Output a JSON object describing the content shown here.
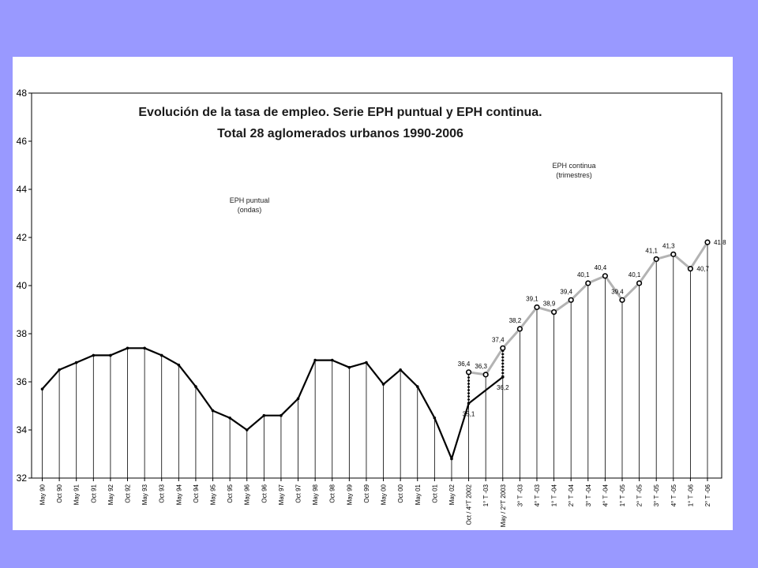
{
  "colors": {
    "background": "#9999ff",
    "panel": "#ffffff",
    "series_puntual": "#000000",
    "series_continua": "#b3b3b3"
  },
  "chart_data": {
    "type": "line",
    "title": "Evolución de la tasa de empleo. Serie EPH puntual y EPH continua.",
    "subtitle": "Total 28 aglomerados urbanos 1990-2006",
    "ylim": [
      32,
      48
    ],
    "yticks": [
      "32",
      "34",
      "36",
      "38",
      "40",
      "42",
      "44",
      "46",
      "48"
    ],
    "grid": false,
    "categories": [
      "May 90",
      "Oct 90",
      "May 91",
      "Oct 91",
      "May 92",
      "Oct 92",
      "May 93",
      "Oct 93",
      "May 94",
      "Oct 94",
      "May 95",
      "Oct 95",
      "May 96",
      "Oct 96",
      "May 97",
      "Oct 97",
      "May 98",
      "Oct 98",
      "May 99",
      "Oct 99",
      "May 00",
      "Oct 00",
      "May 01",
      "Oct 01",
      "May 02",
      "Oct / 4°T 2002",
      "1° T -03",
      "May / 2°T 2003",
      "3° T -03",
      "4° T -03",
      "1° T -04",
      "2° T -04",
      "3° T -04",
      "4° T -04",
      "1° T -05",
      "2° T -05",
      "3° T -05",
      "4° T -05",
      "1° T -06",
      "2° T -06"
    ],
    "series": [
      {
        "name": "EPH puntual",
        "name_lines": [
          "EPH puntual",
          "(ondas)"
        ],
        "values": [
          35.7,
          36.5,
          36.8,
          37.1,
          37.1,
          37.4,
          37.4,
          37.1,
          36.7,
          35.8,
          34.8,
          34.5,
          34.0,
          34.6,
          34.6,
          35.3,
          36.9,
          36.9,
          36.6,
          36.8,
          35.9,
          36.5,
          35.8,
          34.5,
          32.8,
          35.1,
          null,
          36.2,
          null,
          null,
          null,
          null,
          null,
          null,
          null,
          null,
          null,
          null,
          null,
          null
        ],
        "connect_gaps": true
      },
      {
        "name": "EPH continua",
        "name_lines": [
          "EPH continua",
          "(trimestres)"
        ],
        "values": [
          null,
          null,
          null,
          null,
          null,
          null,
          null,
          null,
          null,
          null,
          null,
          null,
          null,
          null,
          null,
          null,
          null,
          null,
          null,
          null,
          null,
          null,
          null,
          null,
          null,
          36.4,
          36.3,
          37.4,
          38.2,
          39.1,
          38.9,
          39.4,
          40.1,
          40.4,
          39.4,
          40.1,
          41.1,
          41.3,
          40.7,
          41.8
        ]
      }
    ],
    "data_labels": [
      {
        "index": 25,
        "text": "36,4",
        "pos": "above"
      },
      {
        "index": 25,
        "text": "35,1",
        "pos": "below"
      },
      {
        "index": 26,
        "text": "36,3",
        "pos": "above"
      },
      {
        "index": 27,
        "text": "37,4",
        "pos": "above"
      },
      {
        "index": 27,
        "text": "36,2",
        "pos": "below"
      },
      {
        "index": 28,
        "text": "38,2",
        "pos": "above"
      },
      {
        "index": 29,
        "text": "39,1",
        "pos": "above"
      },
      {
        "index": 30,
        "text": "38,9",
        "pos": "above"
      },
      {
        "index": 31,
        "text": "39,4",
        "pos": "above"
      },
      {
        "index": 32,
        "text": "40,1",
        "pos": "above"
      },
      {
        "index": 33,
        "text": "40,4",
        "pos": "above"
      },
      {
        "index": 34,
        "text": "39,4",
        "pos": "above"
      },
      {
        "index": 35,
        "text": "40,1",
        "pos": "above"
      },
      {
        "index": 36,
        "text": "41,1",
        "pos": "above"
      },
      {
        "index": 37,
        "text": "41,3",
        "pos": "above"
      },
      {
        "index": 38,
        "text": "40,7",
        "pos": "right"
      },
      {
        "index": 39,
        "text": "41,8",
        "pos": "right"
      }
    ],
    "overlap_connectors": [
      {
        "index": 25,
        "from": 35.1,
        "to": 36.4
      },
      {
        "index": 27,
        "from": 36.2,
        "to": 37.4
      }
    ]
  }
}
